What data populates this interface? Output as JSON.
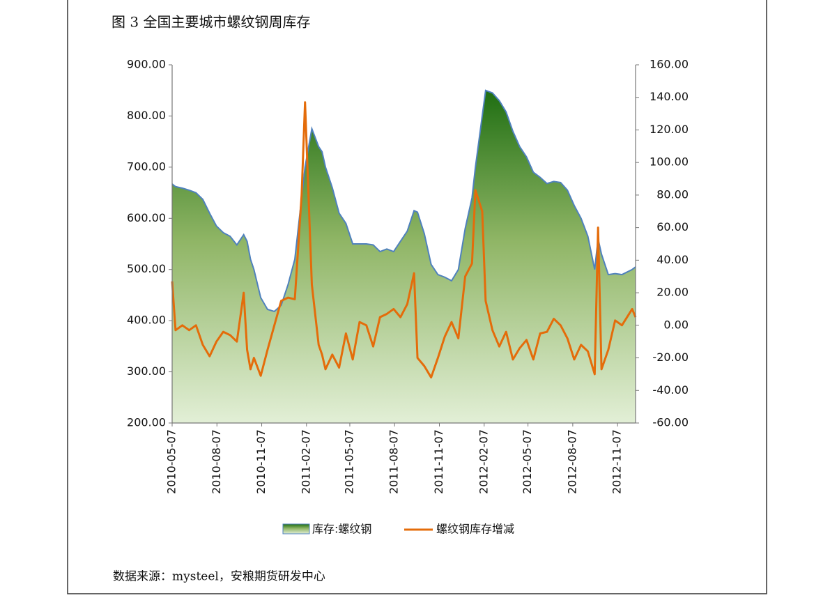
{
  "chart_data": {
    "type": "area-line",
    "title": "图 3  全国主要城市螺纹钢周库存",
    "source": "数据来源：mysteel，安粮期货研发中心",
    "x": [
      "2010-05-07",
      "2010-05-14",
      "2010-05-28",
      "2010-06-11",
      "2010-06-25",
      "2010-07-09",
      "2010-07-23",
      "2010-08-06",
      "2010-08-20",
      "2010-09-03",
      "2010-09-17",
      "2010-10-01",
      "2010-10-08",
      "2010-10-15",
      "2010-10-22",
      "2010-11-05",
      "2010-11-19",
      "2010-12-03",
      "2010-12-17",
      "2010-12-31",
      "2011-01-14",
      "2011-01-28",
      "2011-02-04",
      "2011-02-18",
      "2011-03-04",
      "2011-03-11",
      "2011-03-18",
      "2011-04-01",
      "2011-04-15",
      "2011-04-29",
      "2011-05-13",
      "2011-05-27",
      "2011-06-10",
      "2011-06-24",
      "2011-07-08",
      "2011-07-22",
      "2011-08-05",
      "2011-08-19",
      "2011-09-02",
      "2011-09-16",
      "2011-09-23",
      "2011-10-07",
      "2011-10-21",
      "2011-11-04",
      "2011-11-18",
      "2011-12-02",
      "2011-12-16",
      "2011-12-30",
      "2012-01-13",
      "2012-01-20",
      "2012-02-03",
      "2012-02-10",
      "2012-02-24",
      "2012-03-09",
      "2012-03-23",
      "2012-04-06",
      "2012-04-20",
      "2012-05-04",
      "2012-05-18",
      "2012-06-01",
      "2012-06-15",
      "2012-06-29",
      "2012-07-13",
      "2012-07-27",
      "2012-08-10",
      "2012-08-24",
      "2012-09-07",
      "2012-09-21",
      "2012-09-28",
      "2012-10-05",
      "2012-10-19",
      "2012-11-02",
      "2012-11-16",
      "2012-12-07",
      "2012-12-14"
    ],
    "series": [
      {
        "name": "库存:螺纹钢",
        "color": "#2d7a1f",
        "stroke": "#4f81bd",
        "values": [
          667,
          662,
          659,
          655,
          650,
          637,
          610,
          585,
          572,
          565,
          548,
          568,
          555,
          520,
          500,
          445,
          422,
          418,
          430,
          470,
          520,
          640,
          700,
          775,
          740,
          730,
          700,
          660,
          610,
          590,
          550,
          550,
          550,
          548,
          535,
          540,
          535,
          555,
          575,
          615,
          612,
          570,
          510,
          490,
          485,
          478,
          500,
          580,
          640,
          700,
          800,
          850,
          845,
          830,
          808,
          770,
          740,
          720,
          690,
          680,
          668,
          672,
          670,
          655,
          625,
          600,
          565,
          500,
          560,
          530,
          490,
          492,
          490,
          500,
          505
        ]
      },
      {
        "name": "螺纹钢库存增减",
        "color": "#e46c0a",
        "axis": "y2",
        "values": [
          27,
          -3,
          0,
          -3,
          0,
          -12,
          -19,
          -10,
          -4,
          -6,
          -10,
          20,
          -15,
          -27,
          -20,
          -31,
          -15,
          0,
          15,
          17,
          16,
          80,
          137,
          25,
          -12,
          -18,
          -27,
          -18,
          -26,
          -5,
          -21,
          2,
          0,
          -13,
          5,
          7,
          10,
          5,
          13,
          32,
          -20,
          -25,
          -32,
          -20,
          -7,
          2,
          -8,
          30,
          38,
          83,
          70,
          15,
          -3,
          -13,
          -4,
          -21,
          -14,
          -9,
          -21,
          -5,
          -4,
          4,
          0,
          -8,
          -21,
          -12,
          -16,
          -30,
          60,
          -27,
          -15,
          3,
          0,
          10,
          5
        ]
      }
    ],
    "xlim": [
      "2010-05-07",
      "2012-12-14"
    ],
    "xticks": [
      "2010-05-07",
      "2010-08-07",
      "2010-11-07",
      "2011-02-07",
      "2011-05-07",
      "2011-08-07",
      "2011-11-07",
      "2012-02-07",
      "2012-05-07",
      "2012-08-07",
      "2012-11-07"
    ],
    "ylim": [
      200,
      900
    ],
    "yticks": [
      {
        "value": 200,
        "label": "200.00"
      },
      {
        "value": 300,
        "label": "300.00"
      },
      {
        "value": 400,
        "label": "400.00"
      },
      {
        "value": 500,
        "label": "500.00"
      },
      {
        "value": 600,
        "label": "600.00"
      },
      {
        "value": 700,
        "label": "700.00"
      },
      {
        "value": 800,
        "label": "800.00"
      },
      {
        "value": 900,
        "label": "900.00"
      }
    ],
    "y2lim": [
      -60,
      160
    ],
    "y2ticks": [
      {
        "value": -60,
        "label": "-60.00"
      },
      {
        "value": -40,
        "label": "-40.00"
      },
      {
        "value": -20,
        "label": "-20.00"
      },
      {
        "value": 0,
        "label": "0.00"
      },
      {
        "value": 20,
        "label": "20.00"
      },
      {
        "value": 40,
        "label": "40.00"
      },
      {
        "value": 60,
        "label": "60.00"
      },
      {
        "value": 80,
        "label": "80.00"
      },
      {
        "value": 100,
        "label": "100.00"
      },
      {
        "value": 120,
        "label": "120.00"
      },
      {
        "value": 140,
        "label": "140.00"
      },
      {
        "value": 160,
        "label": "160.00"
      }
    ],
    "grid": false,
    "legend": "bottom"
  }
}
